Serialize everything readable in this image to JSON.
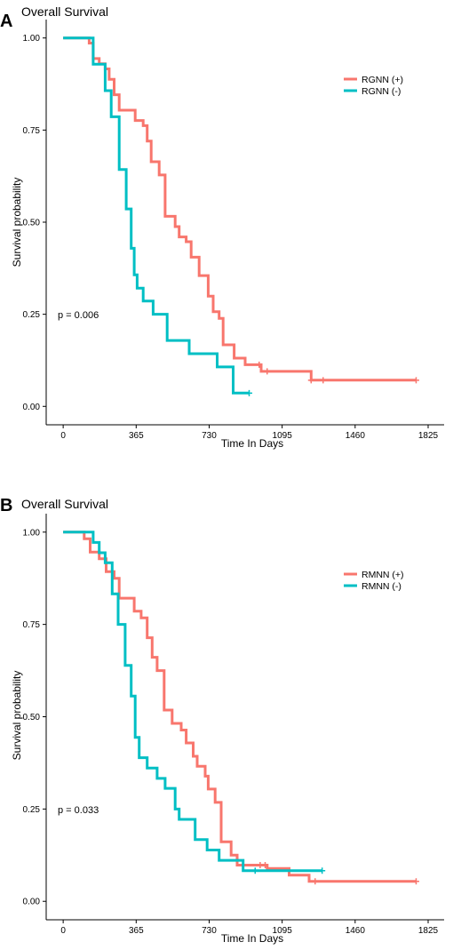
{
  "chart_data": [
    {
      "type": "line",
      "panel_label": "A",
      "title": "Overall Survival",
      "xlabel": "Time In Days",
      "ylabel": "Survival probability",
      "xlim": [
        -85,
        1905
      ],
      "ylim": [
        -0.05,
        1.05
      ],
      "xticks": [
        0,
        365,
        730,
        1095,
        1460,
        1825
      ],
      "yticks": [
        "0.00",
        "0.25",
        "0.50",
        "0.75",
        "1.00"
      ],
      "pvalue": "p = 0.006",
      "legend_position": "top-right",
      "series": [
        {
          "name": "RGNN (+)",
          "color": "#F8766D",
          "steps": [
            [
              0,
              1.0
            ],
            [
              130,
              0.986
            ],
            [
              150,
              0.944
            ],
            [
              180,
              0.93
            ],
            [
              210,
              0.916
            ],
            [
              230,
              0.888
            ],
            [
              255,
              0.846
            ],
            [
              280,
              0.804
            ],
            [
              360,
              0.776
            ],
            [
              400,
              0.762
            ],
            [
              420,
              0.72
            ],
            [
              440,
              0.664
            ],
            [
              480,
              0.628
            ],
            [
              510,
              0.516
            ],
            [
              560,
              0.488
            ],
            [
              580,
              0.46
            ],
            [
              615,
              0.447
            ],
            [
              640,
              0.405
            ],
            [
              680,
              0.355
            ],
            [
              725,
              0.299
            ],
            [
              750,
              0.257
            ],
            [
              780,
              0.239
            ],
            [
              800,
              0.167
            ],
            [
              855,
              0.131
            ],
            [
              910,
              0.113
            ],
            [
              990,
              0.095
            ],
            [
              1240,
              0.071
            ],
            [
              1765,
              0.071
            ]
          ],
          "censored": [
            [
              980,
              0.113
            ],
            [
              1020,
              0.095
            ],
            [
              1240,
              0.071
            ],
            [
              1300,
              0.071
            ],
            [
              1765,
              0.071
            ]
          ]
        },
        {
          "name": "RGNN (-)",
          "color": "#00BFC4",
          "steps": [
            [
              0,
              1.0
            ],
            [
              125,
              1.0
            ],
            [
              150,
              0.929
            ],
            [
              210,
              0.857
            ],
            [
              240,
              0.786
            ],
            [
              280,
              0.643
            ],
            [
              315,
              0.536
            ],
            [
              340,
              0.429
            ],
            [
              355,
              0.357
            ],
            [
              370,
              0.321
            ],
            [
              400,
              0.286
            ],
            [
              450,
              0.25
            ],
            [
              520,
              0.179
            ],
            [
              630,
              0.143
            ],
            [
              770,
              0.107
            ],
            [
              850,
              0.036
            ],
            [
              930,
              0.036
            ]
          ],
          "censored": [
            [
              930,
              0.036
            ]
          ]
        }
      ]
    },
    {
      "type": "line",
      "panel_label": "B",
      "title": "Overall Survival",
      "xlabel": "Time In Days",
      "ylabel": "Survival probability",
      "xlim": [
        -85,
        1905
      ],
      "ylim": [
        -0.05,
        1.05
      ],
      "xticks": [
        0,
        365,
        730,
        1095,
        1460,
        1825
      ],
      "yticks": [
        "0.00",
        "0.25",
        "0.50",
        "0.75",
        "1.00"
      ],
      "pvalue": "p = 0.033",
      "legend_position": "top-right",
      "series": [
        {
          "name": "RMNN (+)",
          "color": "#F8766D",
          "steps": [
            [
              0,
              1.0
            ],
            [
              105,
              0.982
            ],
            [
              135,
              0.946
            ],
            [
              180,
              0.928
            ],
            [
              215,
              0.893
            ],
            [
              255,
              0.875
            ],
            [
              280,
              0.821
            ],
            [
              355,
              0.786
            ],
            [
              390,
              0.768
            ],
            [
              420,
              0.714
            ],
            [
              445,
              0.661
            ],
            [
              470,
              0.625
            ],
            [
              505,
              0.518
            ],
            [
              545,
              0.482
            ],
            [
              590,
              0.464
            ],
            [
              615,
              0.429
            ],
            [
              650,
              0.393
            ],
            [
              670,
              0.366
            ],
            [
              710,
              0.339
            ],
            [
              725,
              0.304
            ],
            [
              760,
              0.268
            ],
            [
              790,
              0.161
            ],
            [
              840,
              0.125
            ],
            [
              870,
              0.098
            ],
            [
              1020,
              0.089
            ],
            [
              1130,
              0.071
            ],
            [
              1230,
              0.054
            ],
            [
              1765,
              0.054
            ]
          ],
          "censored": [
            [
              985,
              0.098
            ],
            [
              1010,
              0.098
            ],
            [
              1260,
              0.054
            ],
            [
              1765,
              0.054
            ]
          ]
        },
        {
          "name": "RMNN (-)",
          "color": "#00BFC4",
          "steps": [
            [
              0,
              1.0
            ],
            [
              125,
              1.0
            ],
            [
              150,
              0.972
            ],
            [
              180,
              0.944
            ],
            [
              210,
              0.917
            ],
            [
              245,
              0.833
            ],
            [
              275,
              0.75
            ],
            [
              310,
              0.639
            ],
            [
              340,
              0.556
            ],
            [
              360,
              0.444
            ],
            [
              380,
              0.389
            ],
            [
              420,
              0.361
            ],
            [
              470,
              0.333
            ],
            [
              510,
              0.306
            ],
            [
              560,
              0.25
            ],
            [
              580,
              0.222
            ],
            [
              660,
              0.167
            ],
            [
              720,
              0.139
            ],
            [
              780,
              0.111
            ],
            [
              900,
              0.083
            ],
            [
              1020,
              0.083
            ],
            [
              1100,
              0.083
            ],
            [
              1295,
              0.083
            ]
          ],
          "censored": [
            [
              960,
              0.083
            ],
            [
              1295,
              0.083
            ]
          ]
        }
      ]
    }
  ]
}
